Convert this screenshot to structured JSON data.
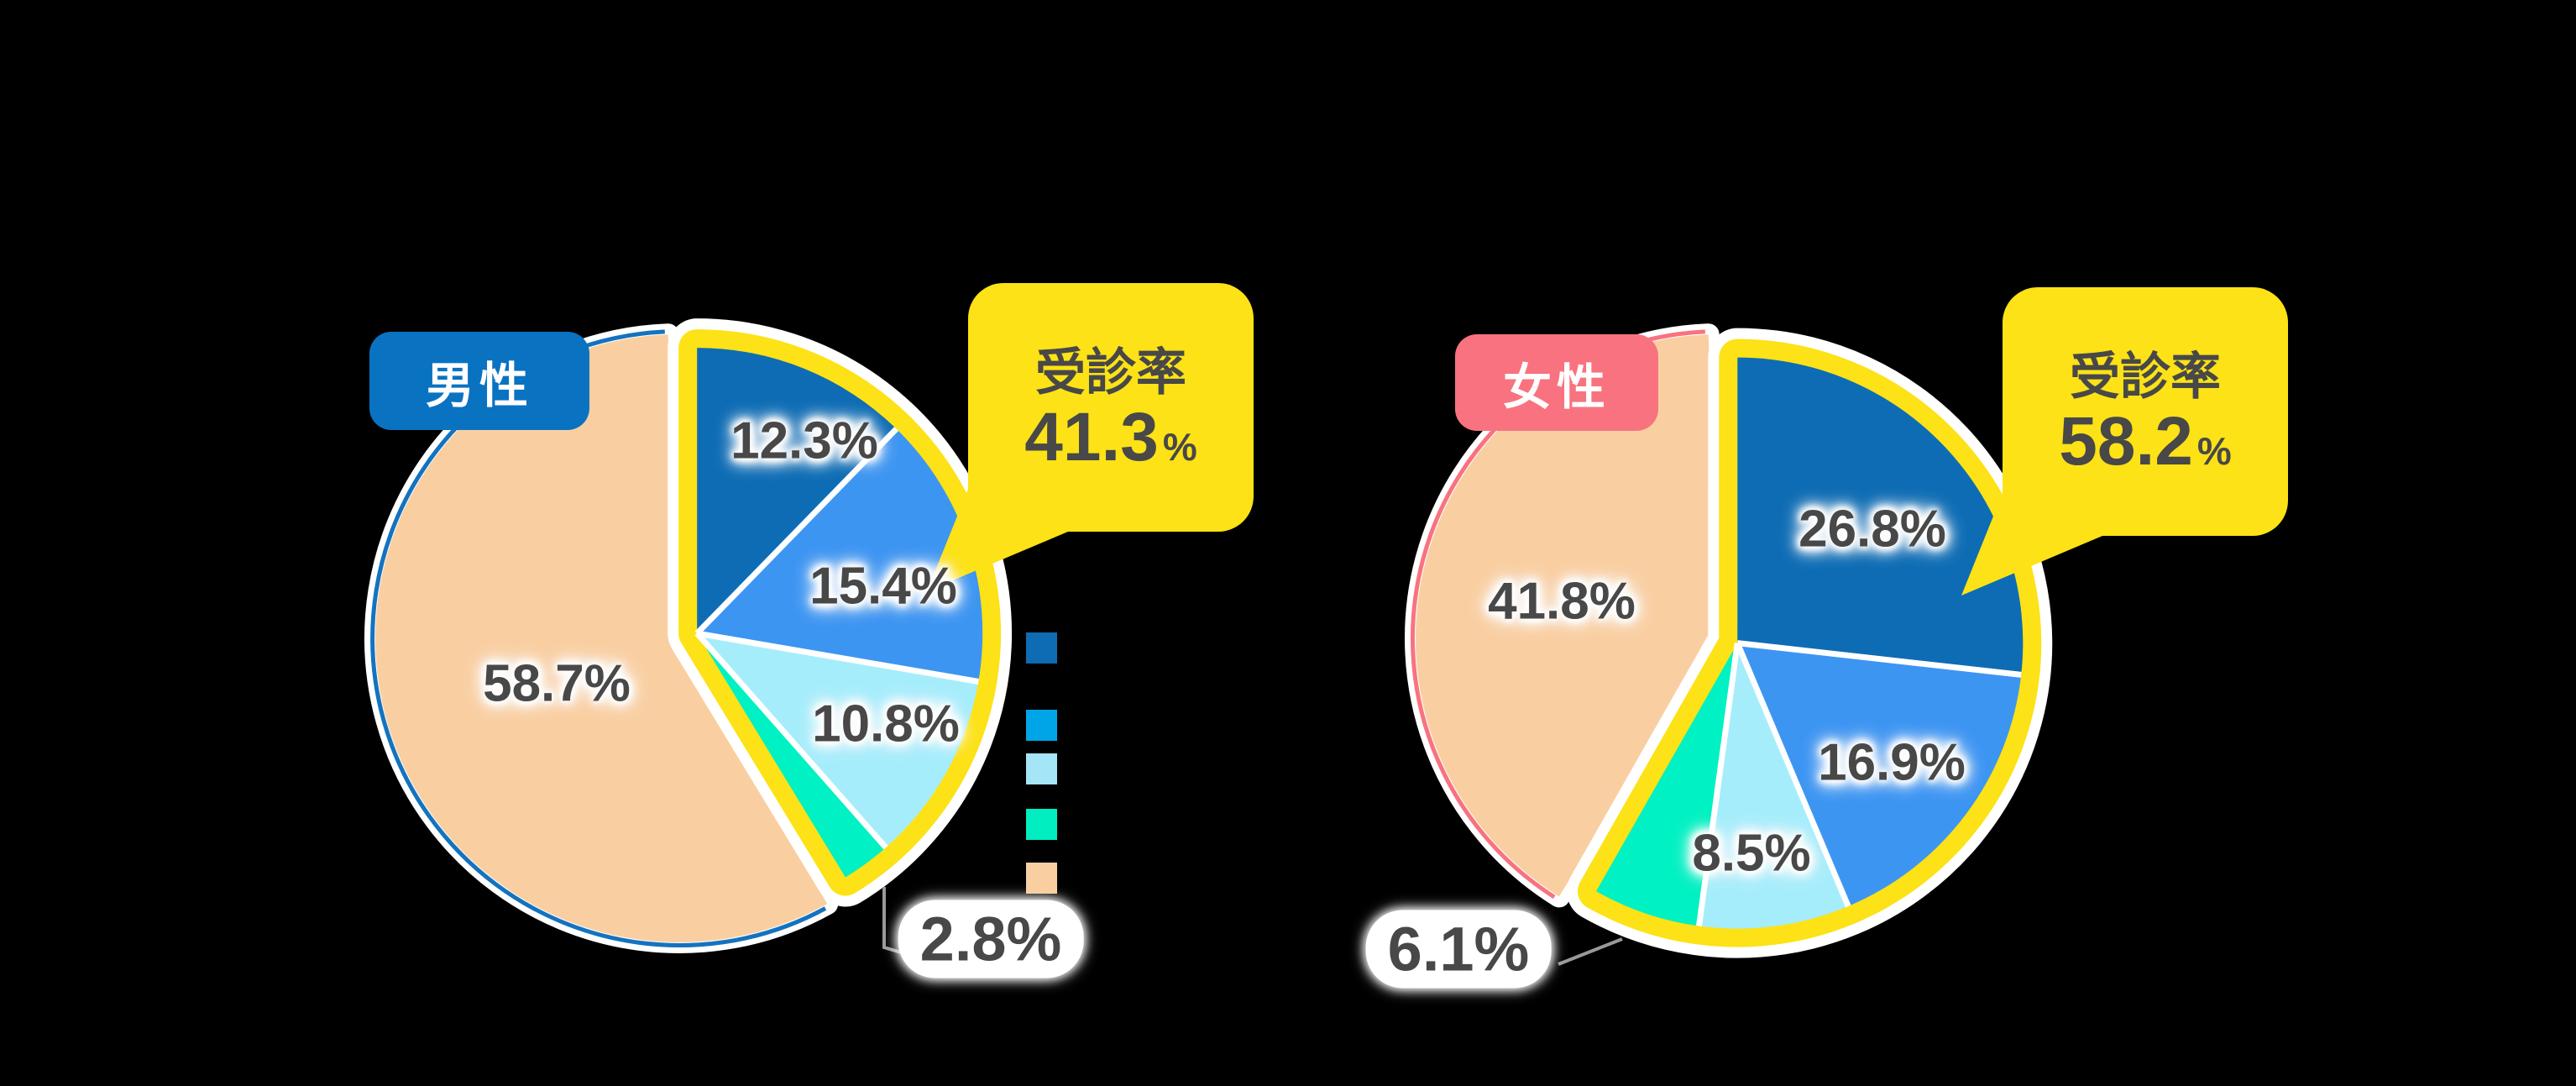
{
  "chart_data": [
    {
      "type": "pie",
      "group_label": "男性",
      "chip_color": "#0A73C1",
      "callout": {
        "label": "受診率",
        "value": "41.3",
        "suffix": "%"
      },
      "slice_labels": [
        "12.3%",
        "15.4%",
        "10.8%",
        "2.8%",
        "58.7%"
      ],
      "values": [
        12.3,
        15.4,
        10.8,
        2.8,
        58.7
      ],
      "highlighted_slices": [
        0,
        1,
        2,
        3
      ],
      "highlight_total_percent": 41.3,
      "outline_color": "#1373BF",
      "start_angle_deg": 0,
      "direction": "clockwise"
    },
    {
      "type": "pie",
      "group_label": "女性",
      "chip_color": "#F8737F",
      "callout": {
        "label": "受診率",
        "value": "58.2",
        "suffix": "%"
      },
      "slice_labels": [
        "26.8%",
        "16.9%",
        "8.5%",
        "6.1%",
        "41.8%"
      ],
      "values": [
        26.8,
        16.9,
        8.5,
        6.1,
        41.8
      ],
      "highlighted_slices": [
        0,
        1,
        2,
        3
      ],
      "highlight_total_percent": 58.2,
      "outline_color": "#F8737F",
      "start_angle_deg": 0,
      "direction": "clockwise"
    }
  ],
  "legend": {
    "colors": [
      "#0E6CB5",
      "#00A5E8",
      "#A5E5F8",
      "#00EEC0",
      "#F9CFA2"
    ]
  },
  "palette": {
    "slice_colors": [
      "#0E6CB5",
      "#3D95F2",
      "#A6EDFB",
      "#00F1C3",
      "#F9CFA2"
    ],
    "highlight_yellow": "#FCE216",
    "label_gray": "#484848",
    "leader_gray": "#999999",
    "background": "#000000",
    "white": "#FFFFFF"
  }
}
